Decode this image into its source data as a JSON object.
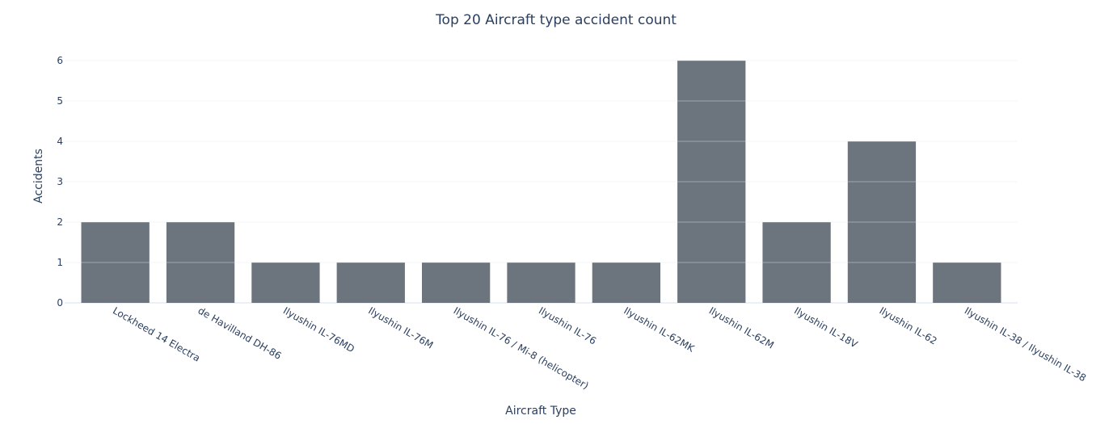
{
  "chart_data": {
    "type": "bar",
    "title": "Top 20 Aircraft type accident count",
    "xlabel": "Aircraft Type",
    "ylabel": "Accidents",
    "categories": [
      "Lockheed 14 Electra",
      "de Havilland DH-86",
      "Ilyushin IL-76MD",
      "Ilyushin IL-76M",
      "Ilyushin IL-76 / Mi-8 (helicopter)",
      "Ilyushin IL-76",
      "Ilyushin IL-62MK",
      "Ilyushin IL-62M",
      "Ilyushin IL-18V",
      "Ilyushin IL-62",
      "Ilyushin IL-38 / Ilyushin IL-38"
    ],
    "values": [
      2,
      2,
      1,
      1,
      1,
      1,
      1,
      6,
      2,
      4,
      1
    ],
    "ylim": [
      0,
      6
    ],
    "yticks": [
      0,
      1,
      2,
      3,
      4,
      5,
      6
    ],
    "grid": true,
    "bar_color": "#6c757d",
    "text_color": "#2a3f5f",
    "grid_color": "#ebf0f8"
  }
}
